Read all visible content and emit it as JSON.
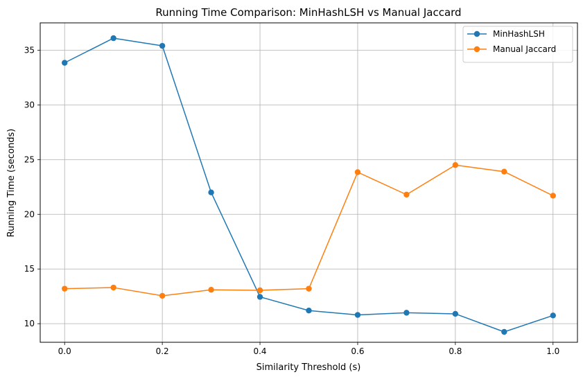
{
  "chart_data": {
    "type": "line",
    "title": "Running Time Comparison: MinHashLSH vs Manual Jaccard",
    "xlabel": "Similarity Threshold (s)",
    "ylabel": "Running Time (seconds)",
    "x": [
      0.0,
      0.1,
      0.2,
      0.3,
      0.4,
      0.5,
      0.6,
      0.7,
      0.8,
      0.9,
      1.0
    ],
    "xlim": [
      -0.05,
      1.05
    ],
    "ylim": [
      8.3,
      37.5
    ],
    "xticks": [
      0.0,
      0.2,
      0.4,
      0.6,
      0.8,
      1.0
    ],
    "xtick_labels": [
      "0.0",
      "0.2",
      "0.4",
      "0.6",
      "0.8",
      "1.0"
    ],
    "yticks": [
      10,
      15,
      20,
      25,
      30,
      35
    ],
    "ytick_labels": [
      "10",
      "15",
      "20",
      "25",
      "30",
      "35"
    ],
    "grid": true,
    "legend_position": "top-right",
    "series": [
      {
        "name": "MinHashLSH",
        "color": "#1f77b4",
        "values": [
          33.85,
          36.1,
          35.4,
          22.0,
          12.45,
          11.2,
          10.8,
          11.0,
          10.9,
          9.25,
          10.75
        ]
      },
      {
        "name": "Manual Jaccard",
        "color": "#ff7f0e",
        "values": [
          13.2,
          13.3,
          12.55,
          13.1,
          13.05,
          13.2,
          23.85,
          21.8,
          24.5,
          23.9,
          21.7
        ]
      }
    ]
  }
}
